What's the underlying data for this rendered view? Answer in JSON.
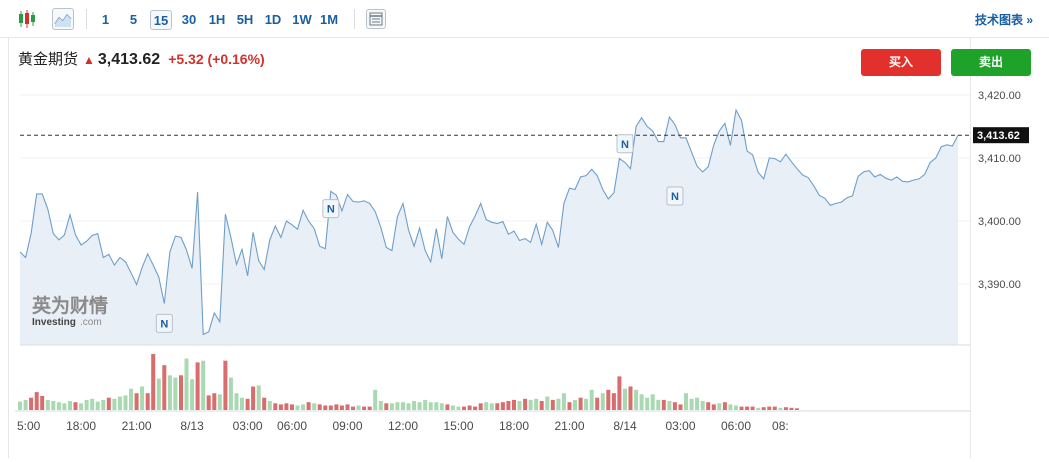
{
  "toolbar": {
    "timeframes": [
      "1",
      "5",
      "15",
      "30",
      "1H",
      "5H",
      "1D",
      "1W",
      "1M"
    ],
    "active_timeframe": "15",
    "tech_chart_label": "技术图表 »"
  },
  "quote": {
    "name": "黄金期货",
    "price": "3,413.62",
    "change": "+5.32 (+0.16%)",
    "direction": "up"
  },
  "actions": {
    "buy_label": "买入",
    "sell_label": "卖出"
  },
  "watermark": {
    "brand_cn": "英为财情",
    "brand_en": "Investing",
    "brand_suffix": ".com"
  },
  "colors": {
    "line": "#6f9fc9",
    "area": "#e8eff6",
    "vol_up": "#a8d9b1",
    "vol_down": "#d96c6c",
    "buy": "#e2312c",
    "sell": "#1ea22a",
    "link": "#1a5fa3"
  },
  "chart_data": {
    "type": "area",
    "y_ticks": [
      "3,420.00",
      "3,410.00",
      "3,400.00",
      "3,390.00"
    ],
    "y_tick_values": [
      3420,
      3410,
      3400,
      3390
    ],
    "ylim": [
      3381,
      3422
    ],
    "last_price_label": "3,413.62",
    "last_price": 3413.62,
    "x_ticks": [
      "5:00",
      "18:00",
      "21:00",
      "8/13",
      "03:00",
      "06:00",
      "09:00",
      "12:00",
      "15:00",
      "18:00",
      "21:00",
      "8/14",
      "03:00",
      "06:00",
      "08:"
    ],
    "x_tick_index": [
      0,
      11,
      21,
      31,
      41,
      49,
      59,
      69,
      79,
      89,
      99,
      109,
      119,
      129,
      137
    ],
    "news_marker_label": "N",
    "news_markers": [
      {
        "index": 26,
        "price": 3383.6
      },
      {
        "index": 56,
        "price": 3401.8
      },
      {
        "index": 109,
        "price": 3412.1
      },
      {
        "index": 118,
        "price": 3403.8
      }
    ],
    "series": [
      {
        "values": [
          3395.1,
          3394.2,
          3398.0,
          3404.3,
          3404.3,
          3401.9,
          3398.0,
          3397.0,
          3397.8,
          3401.0,
          3397.8,
          3396.2,
          3396.8,
          3397.7,
          3398.0,
          3394.2,
          3394.7,
          3393.0,
          3394.2,
          3393.5,
          3391.8,
          3389.9,
          3392.6,
          3394.8,
          3393.0,
          3391.1,
          3386.9,
          3395.1,
          3397.6,
          3397.4,
          3395.4,
          3392.5,
          3404.6,
          3382.0,
          3382.4,
          3385.4,
          3384.0,
          3401.1,
          3397.4,
          3393.1,
          3395.5,
          3391.3,
          3398.2,
          3393.7,
          3392.3,
          3397.0,
          3399.2,
          3397.4,
          3400.0,
          3399.4,
          3398.7,
          3401.7,
          3400.0,
          3398.8,
          3396.0,
          3395.6,
          3404.7,
          3404.1,
          3401.6,
          3404.2,
          3403.1,
          3403.0,
          3403.2,
          3402.8,
          3401.5,
          3399.0,
          3395.8,
          3395.3,
          3400.7,
          3402.8,
          3398.6,
          3396.0,
          3398.9,
          3395.3,
          3393.5,
          3398.8,
          3394.0,
          3400.7,
          3398.2,
          3397.1,
          3396.3,
          3399.1,
          3400.8,
          3402.8,
          3400.2,
          3399.8,
          3399.6,
          3399.9,
          3397.9,
          3398.4,
          3396.9,
          3397.2,
          3396.6,
          3399.5,
          3396.3,
          3399.8,
          3398.5,
          3395.8,
          3402.8,
          3405.2,
          3405.0,
          3407.0,
          3407.2,
          3408.2,
          3407.2,
          3405.0,
          3403.5,
          3404.5,
          3409.9,
          3409.3,
          3408.3,
          3415.0,
          3416.4,
          3415.0,
          3414.3,
          3412.6,
          3412.6,
          3416.5,
          3415.3,
          3413.2,
          3413.2,
          3410.9,
          3408.7,
          3407.8,
          3408.6,
          3412.1,
          3414.3,
          3415.5,
          3412.0,
          3417.6,
          3416.0,
          3411.1,
          3410.5,
          3407.7,
          3406.7,
          3410.0,
          3409.9,
          3409.4,
          3410.6,
          3409.4,
          3408.3,
          3407.3,
          3406.9,
          3405.6,
          3404.1,
          3403.6,
          3402.5,
          3402.8,
          3403.0,
          3403.7,
          3404.0,
          3407.1,
          3407.8,
          3408.0,
          3407.0,
          3407.4,
          3406.8,
          3406.5,
          3407.0,
          3406.3,
          3406.2,
          3406.5,
          3406.7,
          3407.4,
          3409.3,
          3410.0,
          3411.8,
          3412.1,
          3411.9,
          3413.6
        ]
      },
      {
        "name": "volume",
        "volume": [
          {
            "v": 0.15,
            "d": 1
          },
          {
            "v": 0.18,
            "d": 1
          },
          {
            "v": 0.22,
            "d": 0
          },
          {
            "v": 0.32,
            "d": 0
          },
          {
            "v": 0.25,
            "d": 0
          },
          {
            "v": 0.18,
            "d": 1
          },
          {
            "v": 0.16,
            "d": 1
          },
          {
            "v": 0.14,
            "d": 1
          },
          {
            "v": 0.12,
            "d": 1
          },
          {
            "v": 0.16,
            "d": 1
          },
          {
            "v": 0.14,
            "d": 0
          },
          {
            "v": 0.12,
            "d": 1
          },
          {
            "v": 0.18,
            "d": 1
          },
          {
            "v": 0.2,
            "d": 1
          },
          {
            "v": 0.15,
            "d": 1
          },
          {
            "v": 0.18,
            "d": 1
          },
          {
            "v": 0.22,
            "d": 0
          },
          {
            "v": 0.2,
            "d": 1
          },
          {
            "v": 0.24,
            "d": 1
          },
          {
            "v": 0.26,
            "d": 1
          },
          {
            "v": 0.38,
            "d": 1
          },
          {
            "v": 0.3,
            "d": 0
          },
          {
            "v": 0.42,
            "d": 1
          },
          {
            "v": 0.3,
            "d": 0
          },
          {
            "v": 1.0,
            "d": 0
          },
          {
            "v": 0.56,
            "d": 1
          },
          {
            "v": 0.8,
            "d": 0
          },
          {
            "v": 0.62,
            "d": 1
          },
          {
            "v": 0.58,
            "d": 1
          },
          {
            "v": 0.62,
            "d": 0
          },
          {
            "v": 0.92,
            "d": 1
          },
          {
            "v": 0.55,
            "d": 1
          },
          {
            "v": 0.85,
            "d": 0
          },
          {
            "v": 0.88,
            "d": 1
          },
          {
            "v": 0.26,
            "d": 0
          },
          {
            "v": 0.3,
            "d": 0
          },
          {
            "v": 0.28,
            "d": 1
          },
          {
            "v": 0.88,
            "d": 0
          },
          {
            "v": 0.58,
            "d": 1
          },
          {
            "v": 0.3,
            "d": 1
          },
          {
            "v": 0.22,
            "d": 1
          },
          {
            "v": 0.2,
            "d": 0
          },
          {
            "v": 0.42,
            "d": 0
          },
          {
            "v": 0.44,
            "d": 1
          },
          {
            "v": 0.22,
            "d": 0
          },
          {
            "v": 0.16,
            "d": 1
          },
          {
            "v": 0.12,
            "d": 0
          },
          {
            "v": 0.1,
            "d": 0
          },
          {
            "v": 0.12,
            "d": 0
          },
          {
            "v": 0.1,
            "d": 0
          },
          {
            "v": 0.08,
            "d": 1
          },
          {
            "v": 0.1,
            "d": 1
          },
          {
            "v": 0.14,
            "d": 0
          },
          {
            "v": 0.12,
            "d": 1
          },
          {
            "v": 0.1,
            "d": 0
          },
          {
            "v": 0.08,
            "d": 0
          },
          {
            "v": 0.08,
            "d": 0
          },
          {
            "v": 0.1,
            "d": 0
          },
          {
            "v": 0.08,
            "d": 0
          },
          {
            "v": 0.1,
            "d": 0
          },
          {
            "v": 0.06,
            "d": 0
          },
          {
            "v": 0.08,
            "d": 1
          },
          {
            "v": 0.06,
            "d": 0
          },
          {
            "v": 0.06,
            "d": 0
          },
          {
            "v": 0.36,
            "d": 1
          },
          {
            "v": 0.16,
            "d": 1
          },
          {
            "v": 0.12,
            "d": 0
          },
          {
            "v": 0.12,
            "d": 1
          },
          {
            "v": 0.14,
            "d": 1
          },
          {
            "v": 0.14,
            "d": 1
          },
          {
            "v": 0.12,
            "d": 1
          },
          {
            "v": 0.16,
            "d": 1
          },
          {
            "v": 0.14,
            "d": 1
          },
          {
            "v": 0.18,
            "d": 1
          },
          {
            "v": 0.14,
            "d": 1
          },
          {
            "v": 0.14,
            "d": 1
          },
          {
            "v": 0.12,
            "d": 1
          },
          {
            "v": 0.1,
            "d": 0
          },
          {
            "v": 0.08,
            "d": 1
          },
          {
            "v": 0.06,
            "d": 1
          },
          {
            "v": 0.06,
            "d": 0
          },
          {
            "v": 0.08,
            "d": 0
          },
          {
            "v": 0.06,
            "d": 0
          },
          {
            "v": 0.12,
            "d": 0
          },
          {
            "v": 0.14,
            "d": 1
          },
          {
            "v": 0.12,
            "d": 1
          },
          {
            "v": 0.12,
            "d": 0
          },
          {
            "v": 0.14,
            "d": 0
          },
          {
            "v": 0.16,
            "d": 0
          },
          {
            "v": 0.18,
            "d": 0
          },
          {
            "v": 0.16,
            "d": 1
          },
          {
            "v": 0.2,
            "d": 0
          },
          {
            "v": 0.18,
            "d": 1
          },
          {
            "v": 0.2,
            "d": 1
          },
          {
            "v": 0.16,
            "d": 0
          },
          {
            "v": 0.24,
            "d": 1
          },
          {
            "v": 0.18,
            "d": 0
          },
          {
            "v": 0.2,
            "d": 1
          },
          {
            "v": 0.3,
            "d": 1
          },
          {
            "v": 0.14,
            "d": 0
          },
          {
            "v": 0.18,
            "d": 1
          },
          {
            "v": 0.22,
            "d": 0
          },
          {
            "v": 0.2,
            "d": 1
          },
          {
            "v": 0.36,
            "d": 1
          },
          {
            "v": 0.22,
            "d": 0
          },
          {
            "v": 0.3,
            "d": 1
          },
          {
            "v": 0.36,
            "d": 0
          },
          {
            "v": 0.3,
            "d": 0
          },
          {
            "v": 0.6,
            "d": 0
          },
          {
            "v": 0.38,
            "d": 1
          },
          {
            "v": 0.42,
            "d": 0
          },
          {
            "v": 0.36,
            "d": 1
          },
          {
            "v": 0.28,
            "d": 1
          },
          {
            "v": 0.22,
            "d": 1
          },
          {
            "v": 0.28,
            "d": 1
          },
          {
            "v": 0.18,
            "d": 1
          },
          {
            "v": 0.18,
            "d": 0
          },
          {
            "v": 0.16,
            "d": 1
          },
          {
            "v": 0.14,
            "d": 0
          },
          {
            "v": 0.1,
            "d": 0
          },
          {
            "v": 0.3,
            "d": 1
          },
          {
            "v": 0.2,
            "d": 1
          },
          {
            "v": 0.22,
            "d": 1
          },
          {
            "v": 0.16,
            "d": 1
          },
          {
            "v": 0.14,
            "d": 0
          },
          {
            "v": 0.1,
            "d": 0
          },
          {
            "v": 0.12,
            "d": 1
          },
          {
            "v": 0.14,
            "d": 0
          },
          {
            "v": 0.1,
            "d": 1
          },
          {
            "v": 0.08,
            "d": 1
          },
          {
            "v": 0.06,
            "d": 0
          },
          {
            "v": 0.06,
            "d": 0
          },
          {
            "v": 0.06,
            "d": 0
          },
          {
            "v": 0.04,
            "d": 1
          },
          {
            "v": 0.05,
            "d": 0
          },
          {
            "v": 0.06,
            "d": 0
          },
          {
            "v": 0.06,
            "d": 0
          },
          {
            "v": 0.04,
            "d": 1
          },
          {
            "v": 0.05,
            "d": 0
          },
          {
            "v": 0.04,
            "d": 0
          },
          {
            "v": 0.03,
            "d": 0
          }
        ]
      }
    ]
  }
}
